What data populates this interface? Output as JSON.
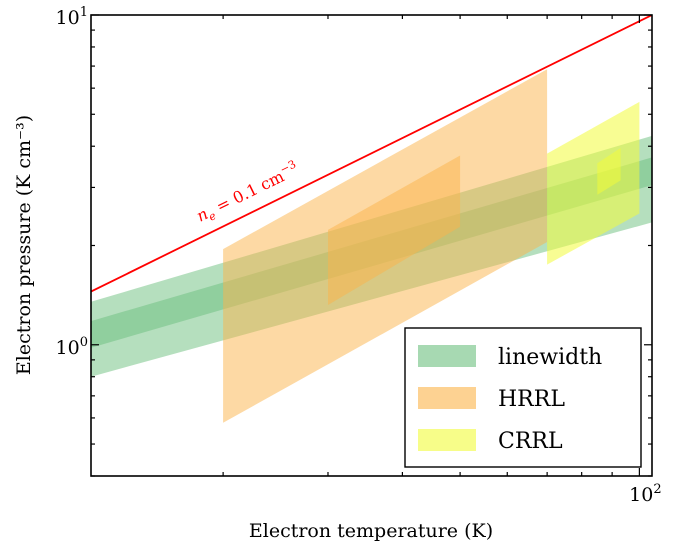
{
  "chart_data": {
    "type": "area",
    "xlabel": "Electron temperature (K)",
    "ylabel": "Electron pressure (K cm⁻³)",
    "xscale": "log",
    "yscale": "log",
    "xlim": [
      12,
      105
    ],
    "ylim": [
      0.4,
      10
    ],
    "grid": false,
    "legend_placement": "lower-right",
    "x_tick_labels": [
      {
        "value": 100,
        "base": "10",
        "exp": "2"
      }
    ],
    "y_tick_labels": [
      {
        "value": 1,
        "base": "10",
        "exp": "0"
      },
      {
        "value": 10,
        "base": "10",
        "exp": "1"
      }
    ],
    "reference_line": {
      "label": "n_e = 0.1 cm^-3",
      "label_parts": {
        "var": "n",
        "sub": "e",
        "rest": " = 0.1 cm",
        "sup": "−3"
      },
      "color": "#ff0000",
      "x": [
        12,
        105
      ],
      "y": [
        1.45,
        10.0
      ]
    },
    "series": [
      {
        "name": "linewidth",
        "color": "#6cbf7e",
        "bands": [
          {
            "opacity": 0.5,
            "x": [
              12,
              105
            ],
            "y_low": [
              0.8,
              2.35
            ],
            "y_high": [
              1.35,
              4.3
            ]
          },
          {
            "opacity": 0.5,
            "x": [
              12,
              105
            ],
            "y_low": [
              0.98,
              3.05
            ],
            "y_high": [
              1.18,
              3.7
            ]
          }
        ]
      },
      {
        "name": "HRRL",
        "color": "#fbb44a",
        "bands": [
          {
            "opacity": 0.5,
            "x": [
              20,
              70
            ],
            "y_low": [
              0.58,
              2.05
            ],
            "y_high": [
              1.95,
              6.85
            ]
          },
          {
            "opacity": 0.5,
            "x": [
              30,
              50
            ],
            "y_low": [
              1.32,
              2.28
            ],
            "y_high": [
              2.23,
              3.75
            ]
          }
        ]
      },
      {
        "name": "CRRL",
        "color": "#f2fb3a",
        "bands": [
          {
            "opacity": 0.55,
            "x": [
              70,
              100
            ],
            "y_low": [
              1.75,
              2.5
            ],
            "y_high": [
              3.8,
              5.45
            ]
          },
          {
            "opacity": 0.55,
            "x": [
              85,
              93
            ],
            "y_low": [
              2.85,
              3.15
            ],
            "y_high": [
              3.55,
              3.95
            ]
          }
        ]
      }
    ]
  }
}
